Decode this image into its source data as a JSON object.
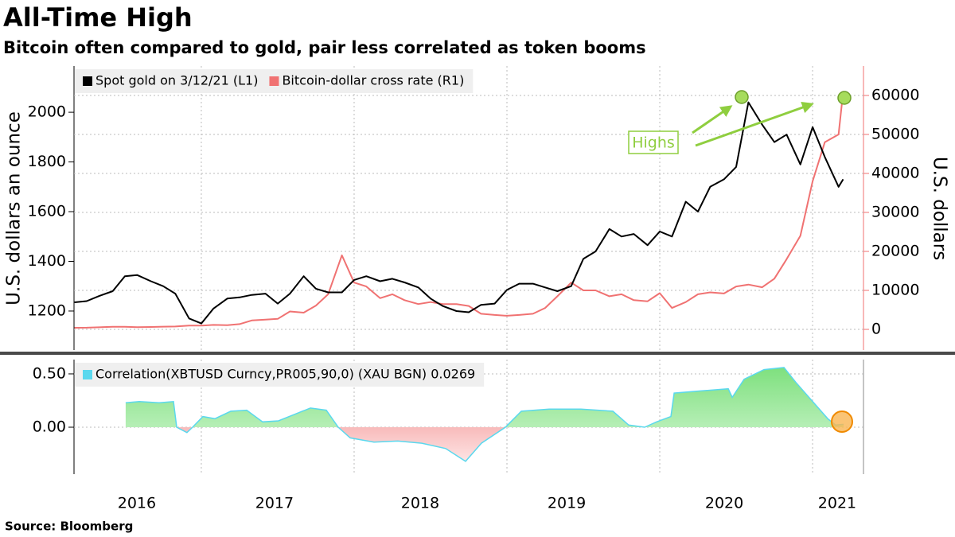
{
  "header": {
    "title": "All-Time High",
    "subtitle": "Bitcoin often compared to gold, pair less correlated as token booms"
  },
  "footer": {
    "source": "Source: Bloomberg"
  },
  "chart_data": [
    {
      "type": "line",
      "ylabel": "U.S. dollars an ounce",
      "y2label": "U.S. dollars",
      "xlim": [
        2016.167,
        2021.333
      ],
      "ylim": [
        1043,
        2186
      ],
      "yticks": [
        1200,
        1400,
        1600,
        1800,
        2000
      ],
      "y2lim": [
        -5300,
        67550
      ],
      "y2ticks": [
        0,
        10000,
        20000,
        30000,
        40000,
        50000,
        60000
      ],
      "grid": "y2",
      "xgrid": [
        2017,
        2018,
        2019,
        2020,
        2021
      ],
      "legend": "top-left",
      "annotations": [
        "Highs"
      ],
      "x": [
        2016.17,
        2016.25,
        2016.33,
        2016.42,
        2016.5,
        2016.58,
        2016.67,
        2016.75,
        2016.83,
        2016.92,
        2017.0,
        2017.08,
        2017.17,
        2017.25,
        2017.33,
        2017.42,
        2017.5,
        2017.58,
        2017.67,
        2017.75,
        2017.83,
        2017.92,
        2018.0,
        2018.08,
        2018.17,
        2018.25,
        2018.33,
        2018.42,
        2018.5,
        2018.58,
        2018.67,
        2018.75,
        2018.83,
        2018.92,
        2019.0,
        2019.08,
        2019.17,
        2019.25,
        2019.33,
        2019.42,
        2019.5,
        2019.58,
        2019.67,
        2019.75,
        2019.83,
        2019.92,
        2020.0,
        2020.08,
        2020.17,
        2020.25,
        2020.33,
        2020.42,
        2020.5,
        2020.58,
        2020.67,
        2020.75,
        2020.83,
        2020.92,
        2021.0,
        2021.08,
        2021.17,
        2021.2
      ],
      "series": [
        {
          "name": "Spot gold on 3/12/21 (L1)",
          "color": "#000000",
          "values": [
            1235,
            1240,
            1260,
            1280,
            1340,
            1345,
            1320,
            1300,
            1270,
            1170,
            1150,
            1210,
            1250,
            1255,
            1265,
            1270,
            1230,
            1270,
            1340,
            1290,
            1275,
            1275,
            1325,
            1340,
            1320,
            1330,
            1315,
            1295,
            1250,
            1220,
            1200,
            1195,
            1225,
            1230,
            1285,
            1310,
            1310,
            1295,
            1280,
            1300,
            1410,
            1440,
            1530,
            1500,
            1510,
            1465,
            1520,
            1500,
            1640,
            1600,
            1700,
            1730,
            1780,
            2040,
            1950,
            1880,
            1910,
            1790,
            1940,
            1820,
            1700,
            1730
          ]
        },
        {
          "name": "Bitcoin-dollar cross rate (R1)",
          "color": "#f07272",
          "axis": "y2",
          "values": [
            420,
            440,
            530,
            670,
            650,
            580,
            610,
            700,
            740,
            960,
            970,
            1150,
            1080,
            1350,
            2300,
            2500,
            2700,
            4600,
            4300,
            6100,
            9000,
            19000,
            12000,
            11000,
            8000,
            9000,
            7500,
            6500,
            7000,
            6500,
            6500,
            6000,
            4000,
            3700,
            3500,
            3700,
            4000,
            5500,
            8500,
            12000,
            10000,
            10000,
            8500,
            9000,
            7500,
            7200,
            9300,
            5500,
            7000,
            9000,
            9500,
            9200,
            11000,
            11500,
            10800,
            13000,
            18000,
            24000,
            38000,
            48000,
            50000,
            61000
          ]
        }
      ]
    },
    {
      "type": "area",
      "xlim": [
        2016.167,
        2021.333
      ],
      "ylim": [
        -0.44,
        0.634
      ],
      "yticks": [
        {
          "value": 0,
          "label": "0.00"
        },
        {
          "value": 0.5,
          "label": "0.50"
        }
      ],
      "xticks": [
        {
          "value": 2016.578,
          "label": "2016"
        },
        {
          "value": 2017.479,
          "label": "2017"
        },
        {
          "value": 2018.432,
          "label": "2018"
        },
        {
          "value": 2019.391,
          "label": "2019"
        },
        {
          "value": 2020.422,
          "label": "2020"
        },
        {
          "value": 2021.161,
          "label": "2021"
        }
      ],
      "grid": true,
      "xgrid": [
        2017,
        2018,
        2019,
        2020,
        2021
      ],
      "legend": "top-left",
      "positive_color": "#7ee07e",
      "negative_color": "#f07272",
      "series": [
        {
          "name": "Correlation(XBTUSD Curncy,PR005,90,0) (XAU BGN) 0.0269",
          "color": "#5ad8ee",
          "x": [
            2016.505,
            2016.594,
            2016.724,
            2016.818,
            2016.839,
            2016.906,
            2016.943,
            2017.01,
            2017.089,
            2017.193,
            2017.297,
            2017.401,
            2017.505,
            2017.609,
            2017.714,
            2017.818,
            2017.896,
            2017.974,
            2018.13,
            2018.286,
            2018.443,
            2018.599,
            2018.729,
            2018.833,
            2018.99,
            2019.094,
            2019.276,
            2019.484,
            2019.693,
            2019.797,
            2019.901,
            2019.979,
            2020.073,
            2020.094,
            2020.266,
            2020.448,
            2020.474,
            2020.552,
            2020.682,
            2020.813,
            2020.891,
            2020.995,
            2021.099,
            2021.151,
            2021.203
          ],
          "values": [
            0.23,
            0.24,
            0.23,
            0.24,
            0.0,
            -0.05,
            0.0,
            0.1,
            0.08,
            0.15,
            0.16,
            0.05,
            0.06,
            0.12,
            0.18,
            0.16,
            0.0,
            -0.1,
            -0.14,
            -0.13,
            -0.15,
            -0.2,
            -0.32,
            -0.15,
            0.0,
            0.15,
            0.17,
            0.17,
            0.15,
            0.02,
            0.0,
            0.05,
            0.1,
            0.32,
            0.34,
            0.36,
            0.28,
            0.45,
            0.54,
            0.56,
            0.42,
            0.25,
            0.08,
            0.02,
            0.0269
          ]
        }
      ]
    }
  ]
}
